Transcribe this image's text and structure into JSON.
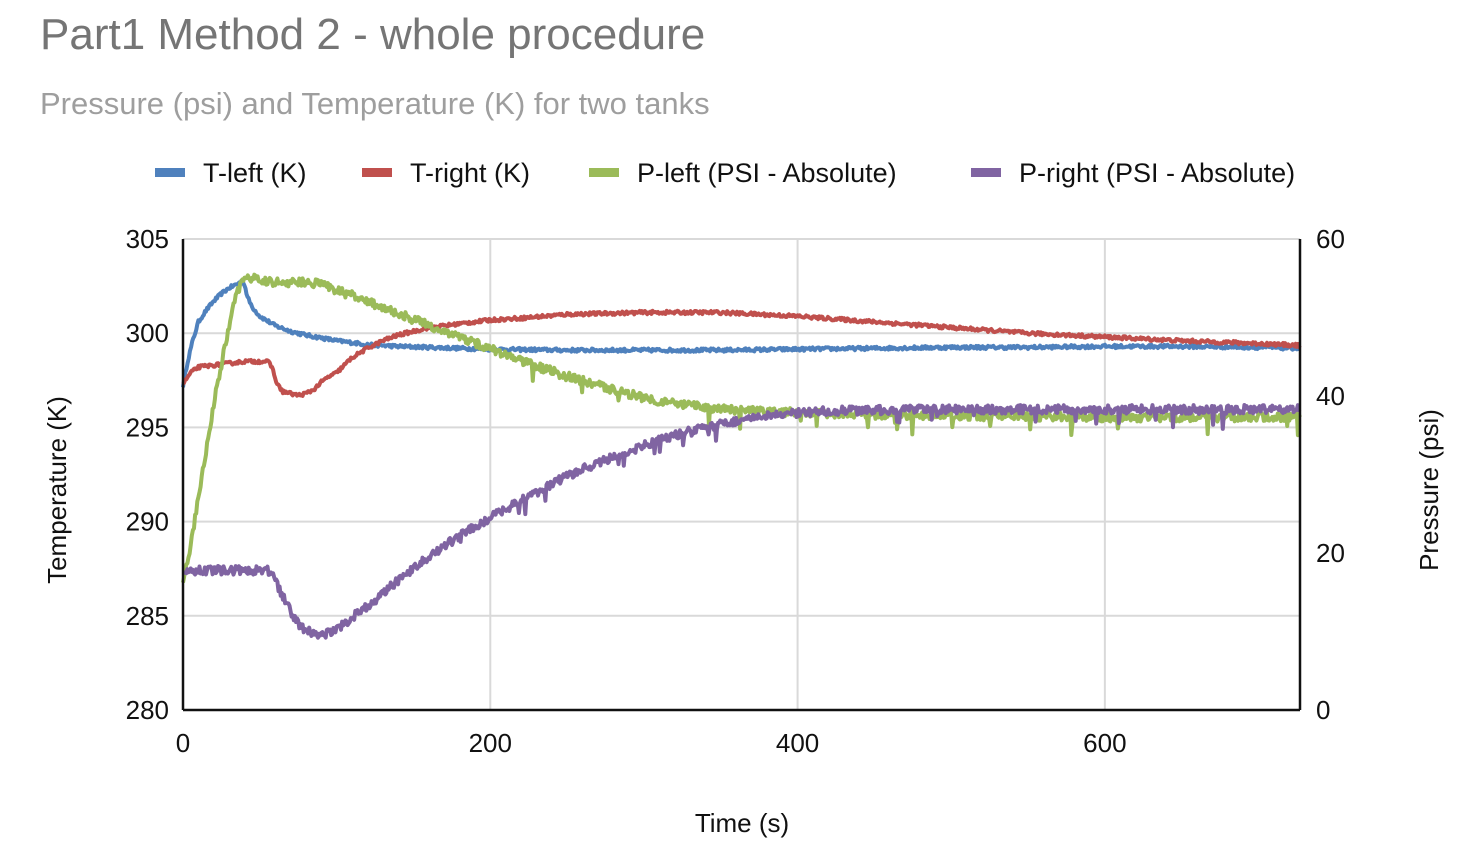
{
  "chart_data": {
    "type": "line",
    "title": "Part1 Method 2 - whole procedure",
    "subtitle": "Pressure (psi) and Temperature (K) for two tanks",
    "xlabel": "Time (s)",
    "ylabel_left": "Temperature (K)",
    "ylabel_right": "Pressure (psi)",
    "xlim": [
      0,
      727
    ],
    "ylim_left": [
      280,
      305
    ],
    "ylim_right": [
      0,
      60
    ],
    "x_ticks": [
      0,
      200,
      400,
      600
    ],
    "y_left_ticks": [
      280,
      285,
      290,
      295,
      300,
      305
    ],
    "y_right_ticks": [
      0,
      20,
      40,
      60
    ],
    "grid": true,
    "legend_position": "top",
    "series": [
      {
        "name": "T-left (K)",
        "axis": "left",
        "color": "#4f81bd",
        "x": [
          0,
          3,
          6,
          10,
          15,
          20,
          25,
          30,
          35,
          38,
          40,
          42,
          45,
          50,
          60,
          70,
          80,
          90,
          100,
          110,
          120,
          140,
          160,
          180,
          200,
          250,
          300,
          350,
          400,
          450,
          500,
          550,
          600,
          650,
          700,
          727
        ],
        "y": [
          297.2,
          298.5,
          299.5,
          300.6,
          301.2,
          301.7,
          302.1,
          302.4,
          302.6,
          302.75,
          302.6,
          301.9,
          301.4,
          300.9,
          300.4,
          300.1,
          299.9,
          299.75,
          299.6,
          299.5,
          299.4,
          299.3,
          299.25,
          299.2,
          299.15,
          299.1,
          299.1,
          299.1,
          299.15,
          299.2,
          299.25,
          299.25,
          299.3,
          299.3,
          299.25,
          299.2
        ]
      },
      {
        "name": "T-right (K)",
        "axis": "left",
        "color": "#c0504d",
        "x": [
          0,
          5,
          10,
          20,
          30,
          40,
          50,
          55,
          58,
          60,
          62,
          65,
          70,
          75,
          80,
          85,
          90,
          95,
          100,
          105,
          110,
          120,
          130,
          140,
          150,
          160,
          180,
          200,
          220,
          250,
          300,
          350,
          400,
          450,
          500,
          550,
          600,
          650,
          700,
          727
        ],
        "y": [
          297.3,
          297.9,
          298.2,
          298.3,
          298.4,
          298.5,
          298.5,
          298.5,
          298.2,
          297.6,
          297.2,
          296.9,
          296.8,
          296.7,
          296.8,
          297.0,
          297.4,
          297.7,
          297.9,
          298.3,
          298.7,
          299.2,
          299.6,
          299.9,
          300.1,
          300.3,
          300.5,
          300.7,
          300.8,
          301.0,
          301.1,
          301.1,
          300.9,
          300.6,
          300.3,
          300.0,
          299.8,
          299.6,
          299.45,
          299.35
        ]
      },
      {
        "name": "P-left (PSI - Absolute)",
        "axis": "right",
        "color": "#9bbb59",
        "x": [
          0,
          5,
          10,
          15,
          20,
          25,
          30,
          35,
          38,
          40,
          45,
          50,
          60,
          70,
          80,
          90,
          100,
          110,
          120,
          140,
          160,
          180,
          200,
          220,
          250,
          280,
          300,
          320,
          350,
          380,
          400,
          420,
          450,
          500,
          550,
          600,
          650,
          700,
          727
        ],
        "y": [
          16,
          21,
          27,
          33,
          39,
          44,
          49,
          53,
          54.5,
          55,
          55,
          54.8,
          54.5,
          54.5,
          54.5,
          54.3,
          53.5,
          52.8,
          52,
          50.5,
          49,
          47.5,
          46,
          44.5,
          42.5,
          40.8,
          39.8,
          39,
          38.3,
          38.0,
          37.9,
          37.8,
          37.6,
          37.5,
          37.4,
          37.3,
          37.3,
          37.3,
          37.3
        ]
      },
      {
        "name": "P-right (PSI - Absolute)",
        "axis": "right",
        "color": "#8064a2",
        "x": [
          0,
          5,
          10,
          20,
          30,
          40,
          50,
          55,
          58,
          60,
          65,
          70,
          75,
          80,
          85,
          90,
          95,
          100,
          105,
          110,
          120,
          140,
          160,
          180,
          200,
          220,
          240,
          260,
          280,
          300,
          320,
          340,
          360,
          380,
          400,
          420,
          450,
          500,
          550,
          600,
          650,
          700,
          727
        ],
        "y": [
          17.5,
          17.7,
          17.8,
          17.8,
          17.8,
          17.8,
          17.8,
          17.8,
          17.3,
          16.5,
          14.5,
          12.5,
          11,
          10.2,
          9.8,
          9.6,
          9.8,
          10.4,
          11,
          11.8,
          13.2,
          16.5,
          19.5,
          22.2,
          24.5,
          26.7,
          28.8,
          30.7,
          32.2,
          33.7,
          35.0,
          36.0,
          36.8,
          37.4,
          37.8,
          38.1,
          38.2,
          38.3,
          38.3,
          38.3,
          38.3,
          38.3,
          38.3
        ]
      }
    ]
  }
}
